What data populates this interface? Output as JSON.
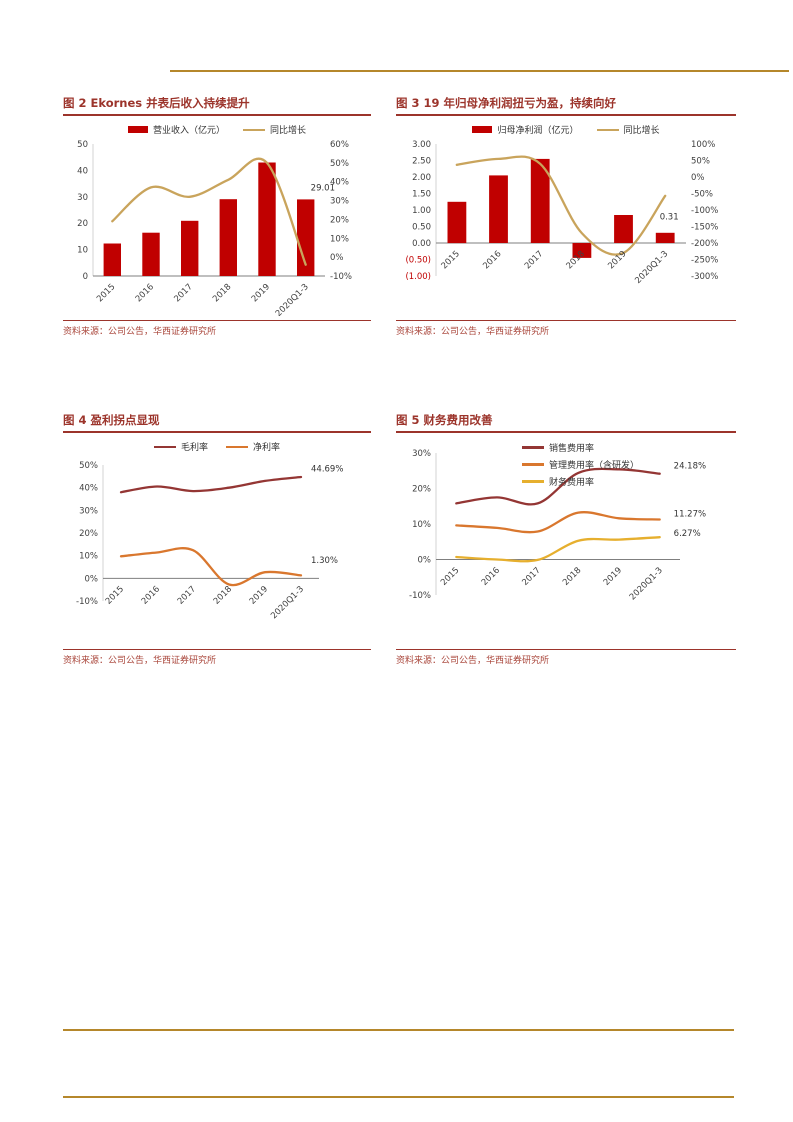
{
  "page": {
    "colors": {
      "bar_red": "#C00000",
      "growth_line_tan": "#C9A45C",
      "dark_red_line": "#943634",
      "orange_line": "#D9772E",
      "gold_line": "#E6AF2E",
      "title_red": "#9C342B",
      "rule_gold": "#B5872B"
    }
  },
  "chart_data": [
    {
      "id": "figure-2",
      "type": "bar",
      "subtype": "bar+line-dual-axis",
      "title": "图 2 Ekornes 并表后收入持续提升",
      "source": "资料来源：公司公告，华西证券研究所",
      "legend_position": "top-center-row",
      "categories": [
        "2015",
        "2016",
        "2017",
        "2018",
        "2019",
        "2020Q1-3"
      ],
      "series": [
        {
          "name": "营业收入（亿元）",
          "kind": "bar",
          "axis": "left",
          "color": "#C00000",
          "values": [
            12.3,
            16.4,
            20.9,
            29.1,
            43.0,
            29.01
          ]
        },
        {
          "name": "同比增长",
          "kind": "line",
          "axis": "right",
          "color": "#C9A45C",
          "values": [
            19,
            37,
            32,
            41,
            50,
            -4
          ]
        }
      ],
      "axes": {
        "left": {
          "min": 0,
          "max": 50,
          "labels": [
            "50",
            "40",
            "30",
            "20",
            "10",
            "0"
          ]
        },
        "right": {
          "min": -10,
          "max": 60,
          "labels": [
            "60%",
            "50%",
            "40%",
            "30%",
            "20%",
            "10%",
            "0%",
            "-10%"
          ]
        }
      },
      "point_labels": [
        {
          "text": "29.01",
          "category_index": 5,
          "axis": "left",
          "value": 33.5,
          "dx": 5,
          "anchor": "start"
        }
      ]
    },
    {
      "id": "figure-3",
      "type": "bar",
      "subtype": "bar+line-dual-axis",
      "title": "图 3 19 年归母净利润扭亏为盈，持续向好",
      "source": "资料来源：公司公告，华西证券研究所",
      "legend_position": "top-center-row",
      "categories": [
        "2015",
        "2016",
        "2017",
        "2018",
        "2019",
        "2020Q1-3"
      ],
      "series": [
        {
          "name": "归母净利润（亿元）",
          "kind": "bar",
          "axis": "left",
          "color": "#C00000",
          "values": [
            1.25,
            2.05,
            2.55,
            -0.45,
            0.85,
            0.31
          ]
        },
        {
          "name": "同比增长",
          "kind": "line",
          "axis": "right",
          "color": "#C9A45C",
          "values": [
            37,
            55,
            40,
            -170,
            -230,
            -57
          ]
        }
      ],
      "axes": {
        "left": {
          "min": -1,
          "max": 3,
          "labels": [
            "3.00",
            "2.50",
            "2.00",
            "1.50",
            "1.00",
            "0.50",
            "0.00",
            "(0.50)",
            "(1.00)"
          ]
        },
        "right": {
          "min": -300,
          "max": 100,
          "labels": [
            "100%",
            "50%",
            "0%",
            "-50%",
            "-100%",
            "-150%",
            "-200%",
            "-250%",
            "-300%"
          ]
        }
      },
      "point_labels": [
        {
          "text": "0.31",
          "category_index": 5,
          "axis": "left",
          "value": 0.8,
          "dx": 4,
          "anchor": "middle"
        }
      ]
    },
    {
      "id": "figure-4",
      "type": "line",
      "title": "图 4 盈利拐点显现",
      "source": "资料来源：公司公告，华西证券研究所",
      "legend_position": "top-center-row",
      "categories": [
        "2015",
        "2016",
        "2017",
        "2018",
        "2019",
        "2020Q1-3"
      ],
      "series": [
        {
          "name": "毛利率",
          "kind": "line",
          "axis": "left",
          "color": "#943634",
          "values": [
            38.0,
            40.5,
            38.5,
            40.0,
            43.0,
            44.69
          ]
        },
        {
          "name": "净利率",
          "kind": "line",
          "axis": "left",
          "color": "#D9772E",
          "values": [
            9.7,
            11.4,
            12.4,
            -2.7,
            2.7,
            1.3
          ]
        }
      ],
      "axes": {
        "left": {
          "min": -10,
          "max": 50,
          "labels": [
            "50%",
            "40%",
            "30%",
            "20%",
            "10%",
            "0%",
            "-10%"
          ]
        }
      },
      "point_labels": [
        {
          "text": "44.69%",
          "category_index": 5,
          "axis": "left",
          "value": 48.5,
          "dx": 10,
          "anchor": "start"
        },
        {
          "text": "1.30%",
          "category_index": 5,
          "axis": "left",
          "value": 8,
          "dx": 10,
          "anchor": "start"
        }
      ]
    },
    {
      "id": "figure-5",
      "type": "line",
      "title": "图 5 财务费用改善",
      "source": "资料来源：公司公告，华西证券研究所",
      "legend_position": "top-center-column",
      "categories": [
        "2015",
        "2016",
        "2017",
        "2018",
        "2019",
        "2020Q1-3"
      ],
      "series": [
        {
          "name": "销售费用率",
          "kind": "line",
          "axis": "left",
          "color": "#943634",
          "values": [
            15.8,
            17.5,
            15.8,
            24.4,
            25.4,
            24.18
          ]
        },
        {
          "name": "管理费用率（含研发）",
          "kind": "line",
          "axis": "left",
          "color": "#D9772E",
          "values": [
            9.6,
            8.9,
            7.9,
            13.2,
            11.6,
            11.27
          ]
        },
        {
          "name": "财务费用率",
          "kind": "line",
          "axis": "left",
          "color": "#E6AF2E",
          "values": [
            0.7,
            0.0,
            -0.1,
            5.3,
            5.6,
            6.27
          ]
        }
      ],
      "axes": {
        "left": {
          "min": -10,
          "max": 30,
          "labels": [
            "30%",
            "20%",
            "10%",
            "0%",
            "-10%"
          ]
        }
      },
      "point_labels": [
        {
          "text": "24.18%",
          "category_index": 5,
          "axis": "left",
          "value": 26.5,
          "dx": 14,
          "anchor": "start"
        },
        {
          "text": "11.27%",
          "category_index": 5,
          "axis": "left",
          "value": 13,
          "dx": 14,
          "anchor": "start"
        },
        {
          "text": "6.27%",
          "category_index": 5,
          "axis": "left",
          "value": 7.5,
          "dx": 14,
          "anchor": "start"
        }
      ]
    }
  ]
}
